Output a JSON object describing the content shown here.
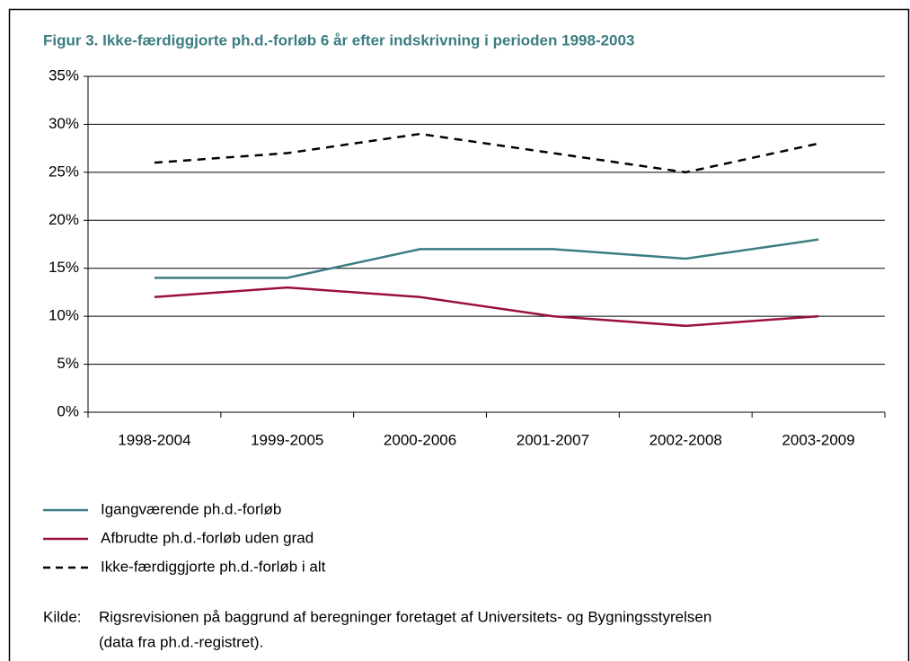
{
  "chart_data": {
    "type": "line",
    "title": "Figur 3. Ikke-færdiggjorte ph.d.-forløb 6 år efter indskrivning i perioden 1998-2003",
    "categories": [
      "1998-2004",
      "1999-2005",
      "2000-2006",
      "2001-2007",
      "2002-2008",
      "2003-2009"
    ],
    "series": [
      {
        "name": "Igangværende ph.d.-forløb",
        "color": "#3b7d82",
        "dashed": false,
        "values": [
          14,
          14,
          17,
          17,
          16,
          18
        ]
      },
      {
        "name": "Afbrudte ph.d.-forløb uden grad",
        "color": "#9b0f3f",
        "dashed": false,
        "values": [
          12,
          13,
          12,
          10,
          9,
          10
        ]
      },
      {
        "name": "Ikke-færdiggjorte ph.d.-forløb i alt",
        "color": "#000000",
        "dashed": true,
        "values": [
          26,
          27,
          29,
          27,
          25,
          28
        ]
      }
    ],
    "ylim": [
      0,
      35
    ],
    "yticks": [
      {
        "value": 0,
        "label": "0%"
      },
      {
        "value": 5,
        "label": "5%"
      },
      {
        "value": 10,
        "label": "10%"
      },
      {
        "value": 15,
        "label": "15%"
      },
      {
        "value": 20,
        "label": "20%"
      },
      {
        "value": 25,
        "label": "25%"
      },
      {
        "value": 30,
        "label": "30%"
      },
      {
        "value": 35,
        "label": "35%"
      }
    ],
    "grid": true,
    "source_label": "Kilde:",
    "source_lines": [
      "Rigsrevisionen på baggrund af beregninger foretaget af Universitets- og Bygningsstyrelsen",
      "(data fra ph.d.-registret)."
    ]
  }
}
